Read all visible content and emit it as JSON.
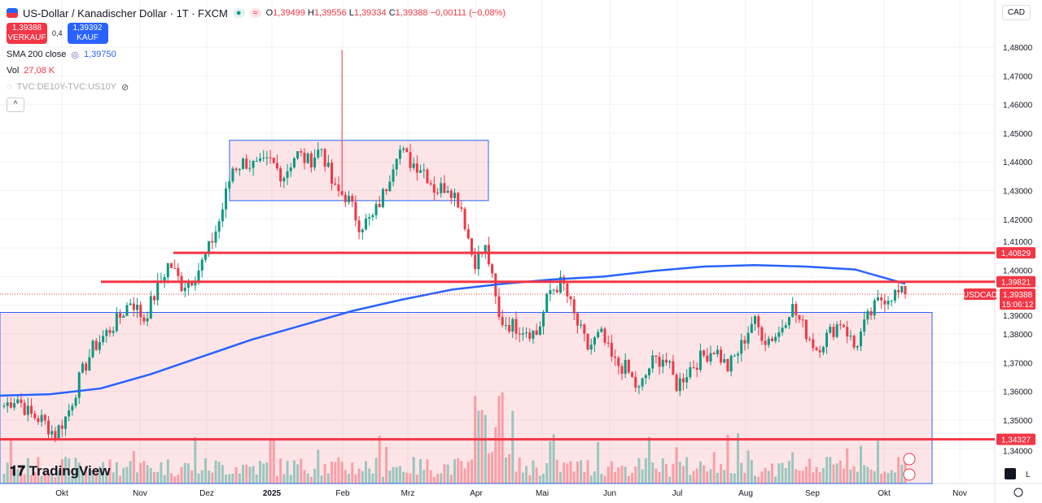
{
  "header": {
    "title": "US-Dollar / Kanadischer Dollar · 1T · FXCM",
    "o_label": "O",
    "o": "1,39499",
    "h_label": "H",
    "h": "1,39556",
    "l_label": "L",
    "l": "1,39334",
    "c_label": "C",
    "c": "1,39388",
    "change": "−0,00111 (−0,08%)"
  },
  "trade": {
    "sell_price": "1,39388",
    "sell_label": "VERKAUF",
    "spread": "0,4",
    "buy_price": "1,39392",
    "buy_label": "KAUF"
  },
  "indicators": {
    "sma_label": "SMA 200 close",
    "sma_value": "1,39750",
    "vol_label": "Vol",
    "vol_value": "27,08 K",
    "compare_label": "TVC:DE10Y-TVC:US10Y"
  },
  "currency": "CAD",
  "logo": "TradingView",
  "collapse_icon": "^",
  "colors": {
    "up": "#089981",
    "down": "#f23645",
    "sma": "#2962ff",
    "line": "#f23645"
  },
  "chart_data": {
    "type": "candlestick",
    "symbol": "USDCAD",
    "ylim": [
      1.335,
      1.485
    ],
    "yticks": [
      "1,48000",
      "1,47000",
      "1,46000",
      "1,45000",
      "1,44000",
      "1,43000",
      "1,42000",
      "1,41000",
      "1,40000",
      "1,39000",
      "1,38000",
      "1,37000",
      "1,36000",
      "1,35000",
      "1,34000"
    ],
    "xticks": [
      "Okt",
      "Nov",
      "Dez",
      "2025",
      "Feb",
      "Mrz",
      "Apr",
      "Mai",
      "Jun",
      "Jul",
      "Aug",
      "Sep",
      "Okt",
      "Nov"
    ],
    "closes": [
      1.355,
      1.358,
      1.352,
      1.35,
      1.345,
      1.352,
      1.365,
      1.375,
      1.38,
      1.385,
      1.392,
      1.385,
      1.395,
      1.405,
      1.397,
      1.4,
      1.408,
      1.42,
      1.438,
      1.44,
      1.438,
      1.44,
      1.435,
      1.443,
      1.44,
      1.445,
      1.43,
      1.428,
      1.418,
      1.42,
      1.43,
      1.445,
      1.44,
      1.438,
      1.43,
      1.432,
      1.425,
      1.405,
      1.41,
      1.385,
      1.383,
      1.382,
      1.38,
      1.395,
      1.398,
      1.385,
      1.375,
      1.38,
      1.37,
      1.368,
      1.36,
      1.37,
      1.372,
      1.362,
      1.368,
      1.372,
      1.375,
      1.368,
      1.375,
      1.385,
      1.378,
      1.38,
      1.39,
      1.382,
      1.375,
      1.38,
      1.385,
      1.375,
      1.385,
      1.392,
      1.394,
      1.3939
    ],
    "sma": [
      1.3585,
      1.359,
      1.361,
      1.366,
      1.372,
      1.378,
      1.383,
      1.388,
      1.392,
      1.3955,
      1.3975,
      1.399,
      1.4,
      1.402,
      1.4035,
      1.404,
      1.4035,
      1.4025,
      1.3975
    ],
    "levels": [
      {
        "price": 1.40829,
        "label": "1,40829"
      },
      {
        "price": 1.39821,
        "label": "1,39821"
      },
      {
        "price": 1.34327,
        "label": "1,34327"
      }
    ],
    "last": {
      "label": "USDCAD",
      "price": "1,39388",
      "countdown": "15:06:12"
    }
  }
}
